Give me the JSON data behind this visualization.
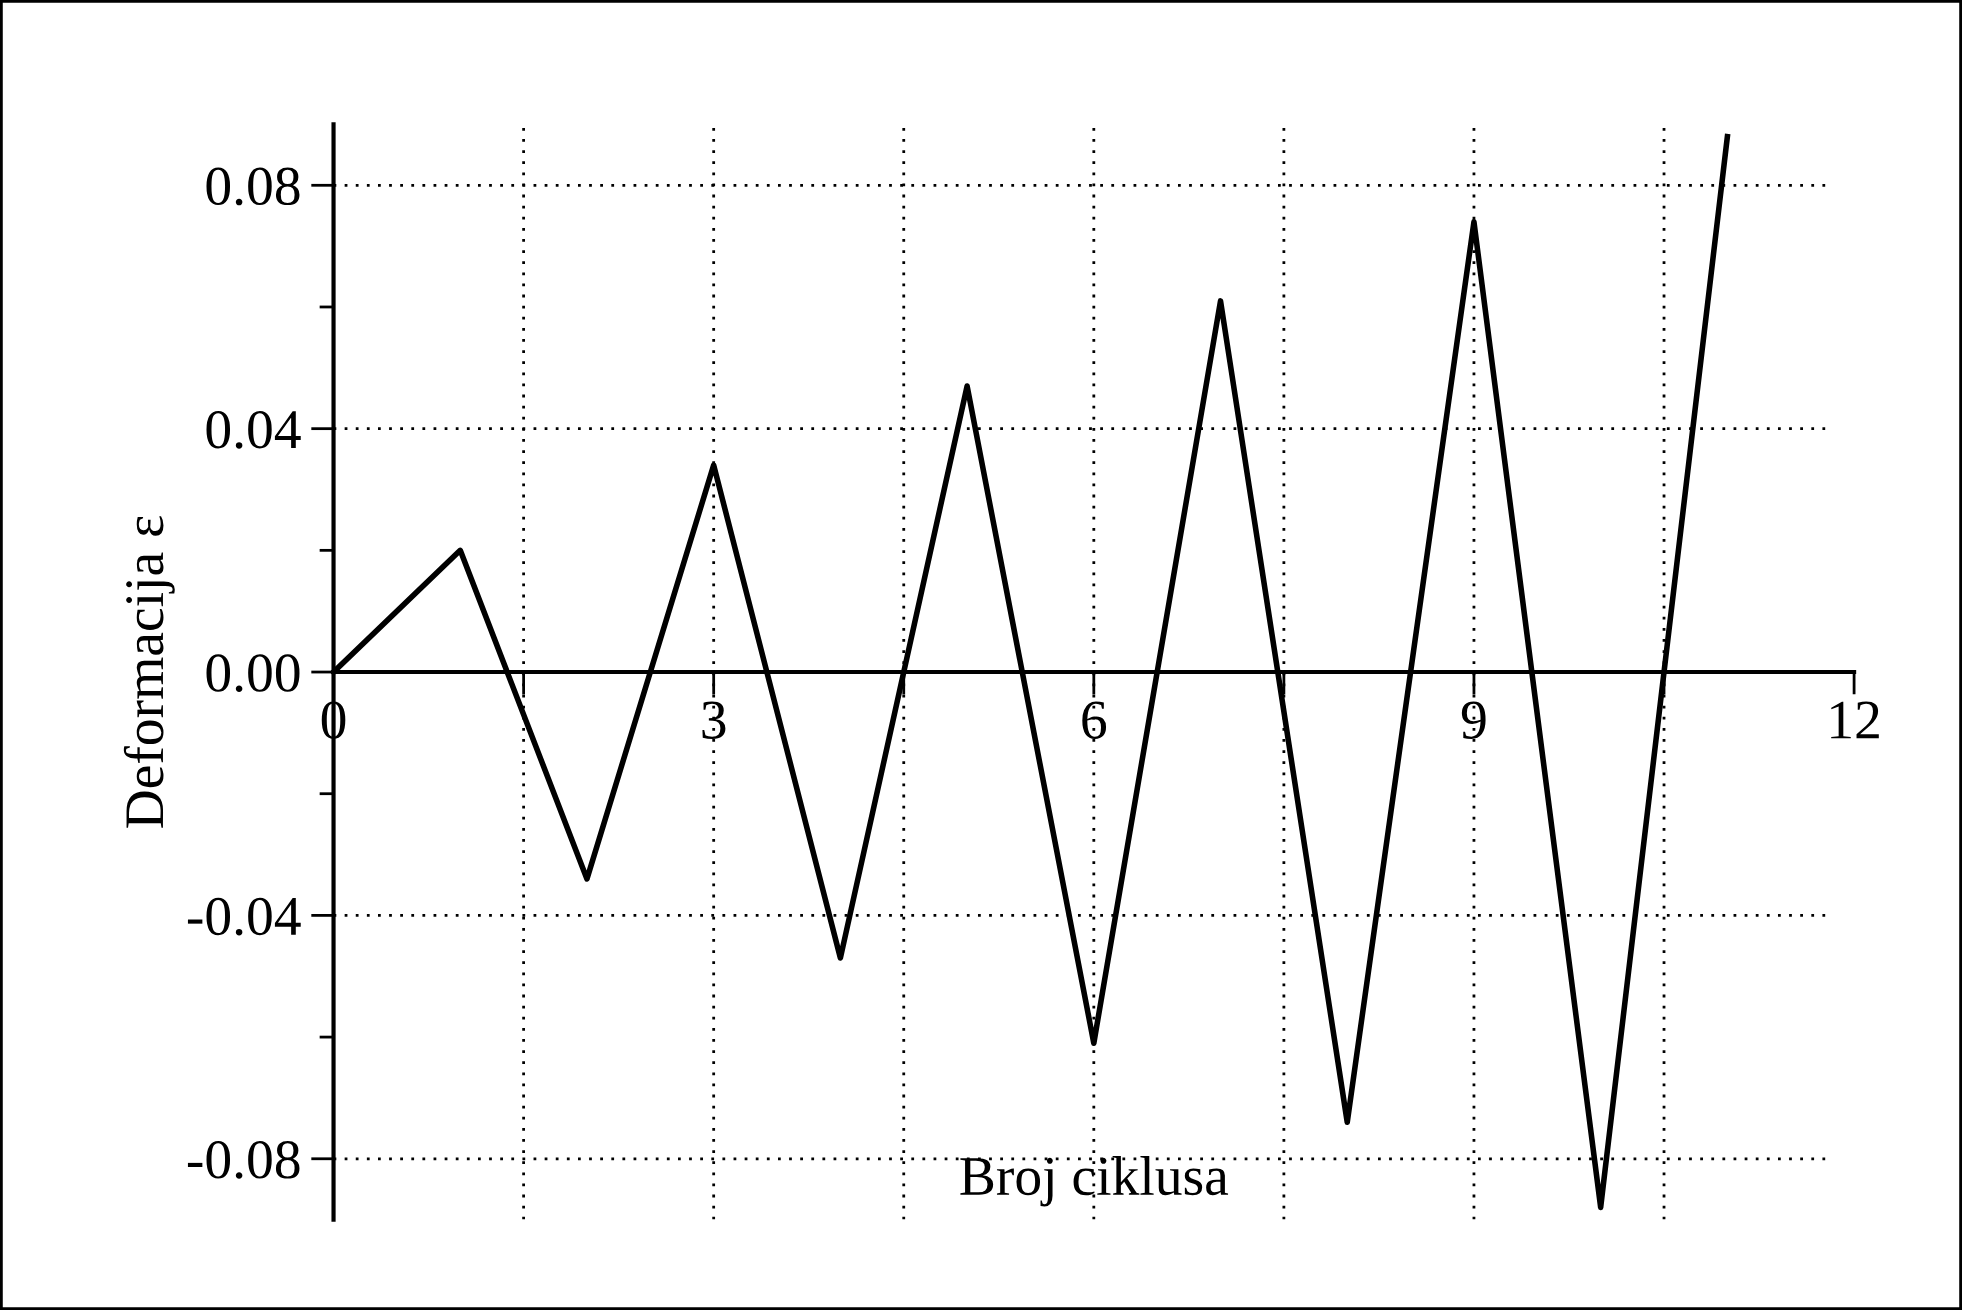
{
  "chart_data": {
    "type": "line",
    "xlabel": "Broj ciklusa",
    "ylabel": "Deformacija ε",
    "x": [
      0,
      1,
      2,
      3,
      4,
      5,
      6,
      7,
      8,
      9,
      10,
      11
    ],
    "series": [
      {
        "color": "#000000",
        "values": [
          0,
          0.02,
          -0.034,
          0.034,
          -0.047,
          0.047,
          -0.061,
          0.061,
          -0.074,
          0.074,
          -0.088,
          0.088
        ]
      }
    ],
    "xlim": [
      0,
      12
    ],
    "xticks": [
      0,
      {
        "value": 1.5,
        "label": null
      },
      3,
      {
        "value": 4.5,
        "label": null
      },
      6,
      {
        "value": 7.5,
        "label": null
      },
      9,
      {
        "value": 10.5,
        "label": null
      },
      12
    ],
    "ylim": [
      -0.09,
      0.09
    ],
    "yticks": [
      {
        "value": -0.08,
        "label": "-0.08"
      },
      {
        "value": -0.06,
        "label": null
      },
      {
        "value": -0.04,
        "label": "-0.04"
      },
      {
        "value": -0.02,
        "label": null
      },
      {
        "value": 0,
        "label": "0.00"
      },
      {
        "value": 0.02,
        "label": null
      },
      {
        "value": 0.04,
        "label": "0.04"
      },
      {
        "value": 0.06,
        "label": null
      },
      {
        "value": 0.08,
        "label": "0.08"
      }
    ],
    "grid": true,
    "line_style": "solid"
  }
}
